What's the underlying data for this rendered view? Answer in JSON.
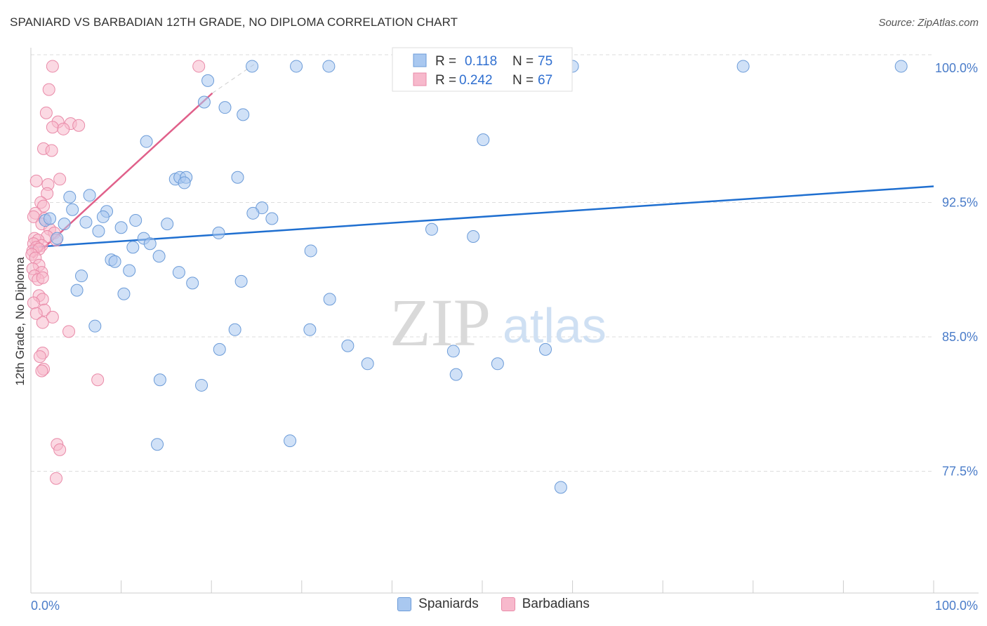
{
  "header": {
    "title": "SPANIARD VS BARBADIAN 12TH GRADE, NO DIPLOMA CORRELATION CHART",
    "source": "Source: ZipAtlas.com"
  },
  "watermark": {
    "zip": "ZIP",
    "atlas": "atlas"
  },
  "colors": {
    "blue_fill": "#a9c8f0",
    "blue_stroke": "#6b9bd8",
    "blue_line": "#1f6fd0",
    "pink_fill": "#f7b9cc",
    "pink_stroke": "#e98aa8",
    "pink_line": "#e0608a",
    "tick_label": "#4a7cc9",
    "grid": "#dddddd"
  },
  "legend": {
    "rows": [
      {
        "series": "spaniards",
        "r_label": "R =",
        "r_value": "0.118",
        "n_label": "N =",
        "n_value": "75"
      },
      {
        "series": "barbadians",
        "r_label": "R =",
        "r_value": "0.242",
        "n_label": "N =",
        "n_value": "67"
      }
    ]
  },
  "bottom_legend": {
    "spaniards": "Spaniards",
    "barbadians": "Barbadians"
  },
  "chart_data": {
    "type": "scatter",
    "title": "SPANIARD VS BARBADIAN 12TH GRADE, NO DIPLOMA CORRELATION CHART",
    "xlabel": "",
    "ylabel": "12th Grade, No Diploma",
    "xlim": [
      0,
      100
    ],
    "ylim": [
      70,
      100.6
    ],
    "x_tick_labels": [
      "0.0%",
      "100.0%"
    ],
    "y_ticks": [
      77.5,
      85.0,
      92.5,
      100.0
    ],
    "y_tick_labels": [
      "77.5%",
      "85.0%",
      "92.5%",
      "100.0%"
    ],
    "grid": true,
    "legend_position": "top-center",
    "series": [
      {
        "name": "Spaniards",
        "r": 0.118,
        "n": 75,
        "trend": {
          "x": [
            0,
            100
          ],
          "y": [
            90.0,
            93.4
          ]
        },
        "points": [
          [
            24.5,
            100.1
          ],
          [
            29.4,
            100.1
          ],
          [
            33.0,
            100.1
          ],
          [
            40.8,
            100.1
          ],
          [
            49.8,
            100.1
          ],
          [
            60.0,
            100.1
          ],
          [
            78.9,
            100.1
          ],
          [
            96.4,
            100.1
          ],
          [
            52.0,
            100.1
          ],
          [
            19.6,
            99.3
          ],
          [
            19.2,
            98.1
          ],
          [
            21.5,
            97.8
          ],
          [
            23.5,
            97.4
          ],
          [
            12.8,
            95.9
          ],
          [
            50.1,
            96.0
          ],
          [
            16.0,
            93.8
          ],
          [
            16.5,
            93.9
          ],
          [
            17.2,
            93.9
          ],
          [
            22.9,
            93.9
          ],
          [
            17.0,
            93.6
          ],
          [
            4.3,
            92.8
          ],
          [
            6.5,
            92.9
          ],
          [
            4.6,
            92.1
          ],
          [
            8.4,
            92.0
          ],
          [
            8.0,
            91.7
          ],
          [
            1.6,
            91.5
          ],
          [
            2.1,
            91.6
          ],
          [
            25.6,
            92.2
          ],
          [
            24.6,
            91.9
          ],
          [
            26.7,
            91.6
          ],
          [
            11.6,
            91.5
          ],
          [
            6.1,
            91.4
          ],
          [
            3.7,
            91.3
          ],
          [
            15.1,
            91.3
          ],
          [
            10.0,
            91.1
          ],
          [
            7.5,
            90.9
          ],
          [
            20.8,
            90.8
          ],
          [
            44.4,
            91.0
          ],
          [
            49.0,
            90.6
          ],
          [
            2.9,
            90.5
          ],
          [
            12.5,
            90.5
          ],
          [
            13.2,
            90.2
          ],
          [
            11.3,
            90.0
          ],
          [
            31.0,
            89.8
          ],
          [
            14.2,
            89.5
          ],
          [
            8.9,
            89.3
          ],
          [
            9.3,
            89.2
          ],
          [
            10.9,
            88.7
          ],
          [
            16.4,
            88.6
          ],
          [
            5.6,
            88.4
          ],
          [
            17.9,
            88.0
          ],
          [
            23.3,
            88.1
          ],
          [
            5.1,
            87.6
          ],
          [
            10.3,
            87.4
          ],
          [
            33.1,
            87.1
          ],
          [
            7.1,
            85.6
          ],
          [
            22.6,
            85.4
          ],
          [
            30.9,
            85.4
          ],
          [
            35.1,
            84.5
          ],
          [
            20.9,
            84.3
          ],
          [
            46.8,
            84.2
          ],
          [
            57.0,
            84.3
          ],
          [
            37.3,
            83.5
          ],
          [
            51.7,
            83.5
          ],
          [
            47.1,
            82.9
          ],
          [
            14.3,
            82.6
          ],
          [
            18.9,
            82.3
          ],
          [
            28.7,
            79.2
          ],
          [
            14.0,
            79.0
          ],
          [
            58.7,
            76.6
          ]
        ]
      },
      {
        "name": "Barbadians",
        "r": 0.242,
        "n": 67,
        "trend": {
          "x": [
            0.2,
            20.1
          ],
          "y": [
            89.4,
            98.6
          ]
        },
        "points": [
          [
            2.4,
            100.1
          ],
          [
            18.6,
            100.1
          ],
          [
            2.0,
            98.8
          ],
          [
            1.7,
            97.5
          ],
          [
            3.0,
            97.0
          ],
          [
            4.4,
            96.9
          ],
          [
            5.3,
            96.8
          ],
          [
            2.4,
            96.7
          ],
          [
            3.6,
            96.6
          ],
          [
            1.4,
            95.5
          ],
          [
            2.3,
            95.4
          ],
          [
            0.6,
            93.7
          ],
          [
            3.2,
            93.8
          ],
          [
            1.9,
            93.5
          ],
          [
            1.8,
            93.0
          ],
          [
            1.1,
            92.5
          ],
          [
            1.4,
            92.3
          ],
          [
            0.5,
            91.9
          ],
          [
            0.3,
            91.7
          ],
          [
            1.5,
            91.6
          ],
          [
            1.2,
            91.3
          ],
          [
            2.1,
            91.0
          ],
          [
            2.6,
            90.8
          ],
          [
            1.8,
            90.6
          ],
          [
            0.4,
            90.5
          ],
          [
            0.8,
            90.4
          ],
          [
            0.3,
            90.2
          ],
          [
            1.2,
            90.1
          ],
          [
            0.6,
            90.0
          ],
          [
            2.8,
            90.4
          ],
          [
            0.2,
            89.8
          ],
          [
            0.9,
            89.9
          ],
          [
            0.1,
            89.6
          ],
          [
            0.5,
            89.4
          ],
          [
            0.9,
            89.0
          ],
          [
            0.2,
            88.8
          ],
          [
            1.2,
            88.6
          ],
          [
            0.4,
            88.4
          ],
          [
            0.8,
            88.2
          ],
          [
            1.3,
            88.3
          ],
          [
            0.9,
            87.3
          ],
          [
            1.3,
            87.1
          ],
          [
            0.3,
            86.9
          ],
          [
            1.5,
            86.5
          ],
          [
            0.6,
            86.3
          ],
          [
            2.4,
            86.1
          ],
          [
            1.3,
            85.8
          ],
          [
            4.2,
            85.3
          ],
          [
            1.3,
            84.1
          ],
          [
            1.0,
            83.9
          ],
          [
            1.4,
            83.2
          ],
          [
            1.2,
            83.1
          ],
          [
            7.4,
            82.6
          ],
          [
            2.9,
            79.0
          ],
          [
            3.2,
            78.7
          ],
          [
            2.8,
            77.1
          ]
        ]
      }
    ]
  }
}
